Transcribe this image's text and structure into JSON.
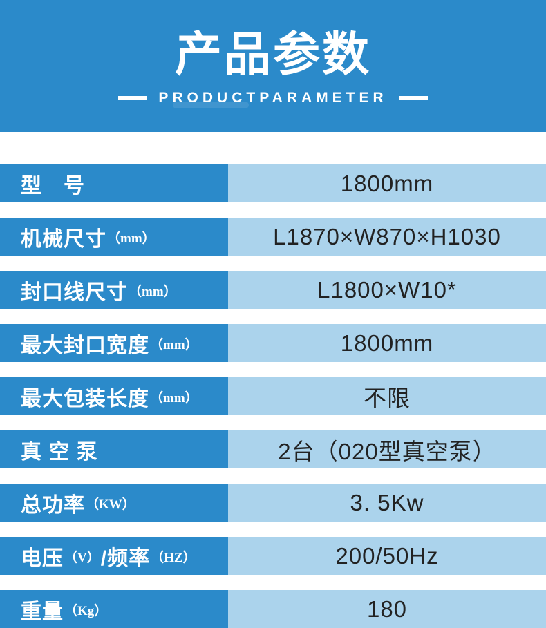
{
  "banner": {
    "title": "产品参数",
    "subtitle": "PRODUCTPARAMETER"
  },
  "table": {
    "rows": [
      {
        "label": "型　号",
        "value": "1800mm"
      },
      {
        "label": "机械尺寸",
        "unit": "（mm）",
        "value": "L1870×W870×H1030"
      },
      {
        "label": "封口线尺寸",
        "unit": "（mm）",
        "value": "L1800×W10*"
      },
      {
        "label": "最大封口宽度",
        "unit": "（mm）",
        "value": "1800mm"
      },
      {
        "label": "最大包装长度",
        "unit": "（mm）",
        "value": "不限"
      },
      {
        "label": "真 空 泵",
        "value": "2台（020型真空泵）"
      },
      {
        "label": "总功率",
        "unit": "（KW）",
        "value": "3. 5Kw"
      },
      {
        "label": "电压",
        "unit": "（V）",
        "label2": "/频率",
        "unit2": "（HZ）",
        "value": "200/50Hz"
      },
      {
        "label": "重量",
        "unit": "（Kg）",
        "value": "180"
      }
    ]
  },
  "colors": {
    "banner_blue": "#2b8aca",
    "label_cell_blue": "#2b8aca",
    "value_cell_blue": "#abd3ec",
    "label_text": "#ffffff",
    "value_text": "#222222",
    "gap": "#ffffff"
  }
}
